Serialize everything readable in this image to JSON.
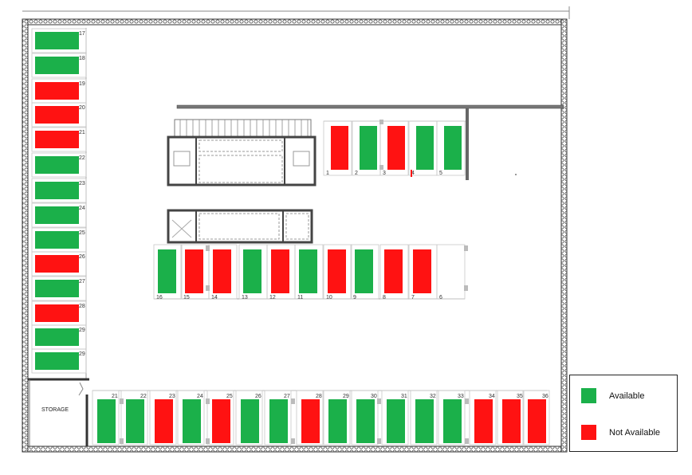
{
  "colors": {
    "available": "#1bb04a",
    "not_available": "#ff1212",
    "wall": "#333333",
    "line": "#9a9a9a"
  },
  "storage_label": "STORAGE",
  "legend": {
    "available_label": "Available",
    "not_available_label": "Not Available"
  },
  "left_column": [
    {
      "num": "17",
      "status": "available"
    },
    {
      "num": "18",
      "status": "available"
    },
    {
      "num": "19",
      "status": "not_available"
    },
    {
      "num": "20",
      "status": "not_available"
    },
    {
      "num": "21",
      "status": "not_available"
    },
    {
      "num": "22",
      "status": "available"
    },
    {
      "num": "23",
      "status": "available"
    },
    {
      "num": "24",
      "status": "available"
    },
    {
      "num": "25",
      "status": "available"
    },
    {
      "num": "26",
      "status": "not_available"
    },
    {
      "num": "27",
      "status": "available"
    },
    {
      "num": "28",
      "status": "not_available"
    },
    {
      "num": "29",
      "status": "available"
    },
    {
      "num": "29",
      "status": "available"
    }
  ],
  "upper_row": [
    {
      "num": "1",
      "status": "not_available"
    },
    {
      "num": "2",
      "status": "available"
    },
    {
      "num": "3",
      "status": "not_available"
    },
    {
      "num": "4",
      "status": "available"
    },
    {
      "num": "5",
      "status": "available"
    }
  ],
  "middle_row": [
    {
      "num": "16",
      "status": "available"
    },
    {
      "num": "15",
      "status": "not_available"
    },
    {
      "num": "14",
      "status": "not_available"
    },
    {
      "num": "13",
      "status": "available"
    },
    {
      "num": "12",
      "status": "not_available"
    },
    {
      "num": "11",
      "status": "available"
    },
    {
      "num": "10",
      "status": "not_available"
    },
    {
      "num": "9",
      "status": "available"
    },
    {
      "num": "8",
      "status": "not_available"
    },
    {
      "num": "7",
      "status": "not_available"
    },
    {
      "num": "6",
      "status": "empty"
    }
  ],
  "bottom_row": [
    {
      "num": "21",
      "status": "available"
    },
    {
      "num": "22",
      "status": "available"
    },
    {
      "num": "23",
      "status": "not_available"
    },
    {
      "num": "24",
      "status": "available"
    },
    {
      "num": "25",
      "status": "not_available"
    },
    {
      "num": "26",
      "status": "available"
    },
    {
      "num": "27",
      "status": "available"
    },
    {
      "num": "28",
      "status": "not_available"
    },
    {
      "num": "29",
      "status": "available"
    },
    {
      "num": "30",
      "status": "available"
    },
    {
      "num": "31",
      "status": "available"
    },
    {
      "num": "32",
      "status": "available"
    },
    {
      "num": "33",
      "status": "available"
    },
    {
      "num": "34",
      "status": "not_available"
    },
    {
      "num": "35",
      "status": "not_available"
    },
    {
      "num": "36",
      "status": "not_available"
    }
  ]
}
